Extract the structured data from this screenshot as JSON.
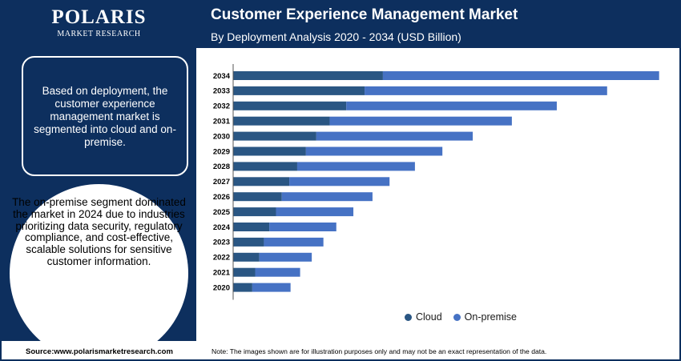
{
  "brand": {
    "name": "POLARIS",
    "tagline": "MARKET RESEARCH"
  },
  "header": {
    "title": "Customer Experience Management Market",
    "subtitle": "By Deployment Analysis 2020 - 2034 (USD Billion)"
  },
  "sidebar": {
    "box_text": "Based on deployment, the customer experience management market is segmented into cloud and on-premise.",
    "circle_text": "The on-premise segment dominated the market in 2024 due to industries prioritizing data security, regulatory compliance, and cost-effective, scalable solutions for sensitive customer information."
  },
  "footer": {
    "source": "Source:www.polarismarketresearch.com",
    "note": "Note: The images shown are for illustration purposes only and may not be an exact representation of the data."
  },
  "colors": {
    "navy": "#0d2f5e",
    "cloud": "#2a5683",
    "on_premise": "#4672c4"
  },
  "chart_data": {
    "type": "bar",
    "orientation": "horizontal",
    "stacked": true,
    "title": "",
    "xlabel": "",
    "ylabel": "",
    "categories": [
      "2034",
      "2033",
      "2032",
      "2031",
      "2030",
      "2029",
      "2028",
      "2027",
      "2026",
      "2025",
      "2024",
      "2023",
      "2022",
      "2021",
      "2020"
    ],
    "series": [
      {
        "name": "Cloud",
        "color": "#2a5683",
        "values": [
          36.0,
          31.6,
          27.2,
          23.2,
          20.0,
          17.5,
          15.4,
          13.5,
          11.7,
          10.3,
          8.7,
          7.4,
          6.3,
          5.3,
          4.6
        ]
      },
      {
        "name": "On-premise",
        "color": "#4672c4",
        "values": [
          66.4,
          58.3,
          50.6,
          43.8,
          37.6,
          32.8,
          28.3,
          24.1,
          21.8,
          18.6,
          16.1,
          14.3,
          12.6,
          10.8,
          9.2
        ]
      }
    ],
    "xlim": [
      0,
      104
    ],
    "grid": false,
    "legend_position": "bottom"
  }
}
